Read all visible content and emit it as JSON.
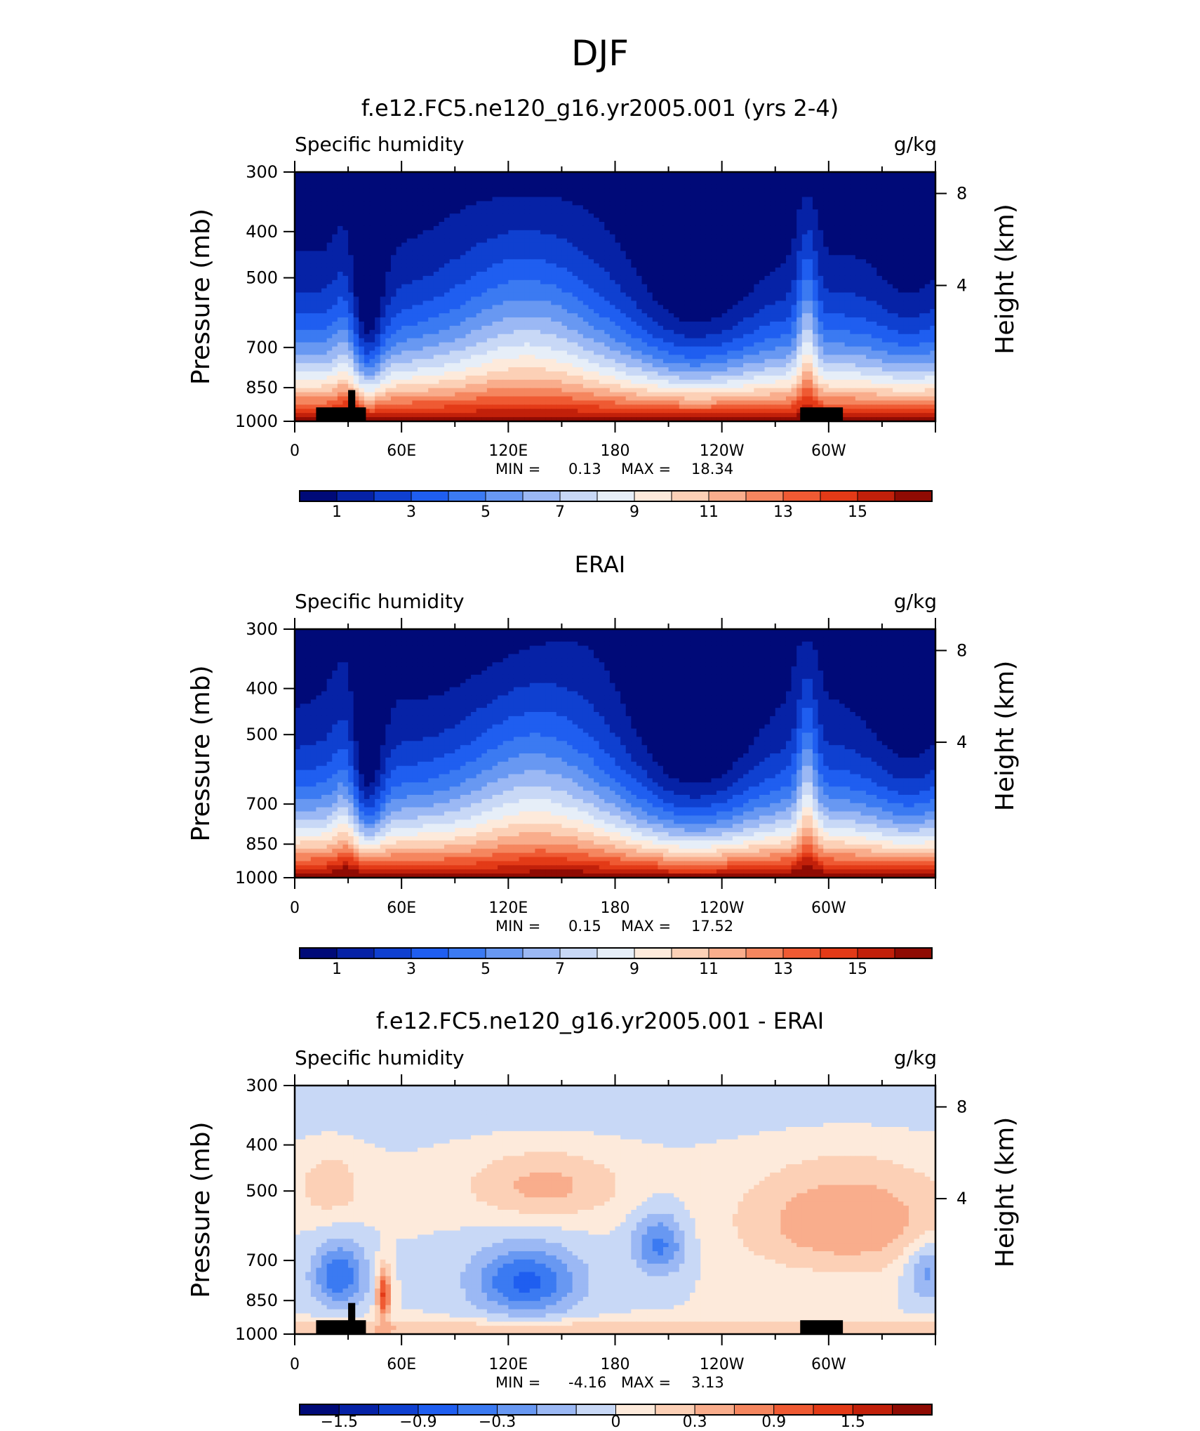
{
  "page_title": "DJF",
  "chart_data": [
    {
      "type": "heatmap",
      "title": "f.e12.FC5.ne120_g16.yr2005.001 (yrs 2-4)",
      "left_string": "Specific humidity",
      "right_string": "g/kg",
      "ylabel": "Pressure (mb)",
      "ylabel_right": "Height (km)",
      "x_ticks": [
        "0",
        "60E",
        "120E",
        "180",
        "120W",
        "60W"
      ],
      "y_ticks": [
        "300",
        "400",
        "500",
        "700",
        "850",
        "1000"
      ],
      "y_ticks_right": [
        "8",
        "4"
      ],
      "min_label": "MIN =",
      "min_value": "0.13",
      "max_label": "MAX =",
      "max_value": "18.34",
      "colorbar_labels": [
        "1",
        "3",
        "5",
        "7",
        "9",
        "11",
        "13",
        "15"
      ],
      "colorbar_colors": [
        "#000a78",
        "#0622a6",
        "#0f40d0",
        "#1f5ef0",
        "#3b7af2",
        "#6898f2",
        "#9bb8f4",
        "#c8d8f6",
        "#e6eef8",
        "#fdeadb",
        "#fcd0b6",
        "#f9ad8c",
        "#f5865f",
        "#ef5a33",
        "#e33a17",
        "#c2200a",
        "#8f0b03"
      ],
      "ylim": [
        1000,
        300
      ],
      "xlim": [
        0,
        360
      ]
    },
    {
      "type": "heatmap",
      "title": "ERAI",
      "left_string": "Specific humidity",
      "right_string": "g/kg",
      "ylabel": "Pressure (mb)",
      "ylabel_right": "Height (km)",
      "x_ticks": [
        "0",
        "60E",
        "120E",
        "180",
        "120W",
        "60W"
      ],
      "y_ticks": [
        "300",
        "400",
        "500",
        "700",
        "850",
        "1000"
      ],
      "y_ticks_right": [
        "8",
        "4"
      ],
      "min_label": "MIN =",
      "min_value": "0.15",
      "max_label": "MAX =",
      "max_value": "17.52",
      "colorbar_labels": [
        "1",
        "3",
        "5",
        "7",
        "9",
        "11",
        "13",
        "15"
      ],
      "colorbar_colors": [
        "#000a78",
        "#0622a6",
        "#0f40d0",
        "#1f5ef0",
        "#3b7af2",
        "#6898f2",
        "#9bb8f4",
        "#c8d8f6",
        "#e6eef8",
        "#fdeadb",
        "#fcd0b6",
        "#f9ad8c",
        "#f5865f",
        "#ef5a33",
        "#e33a17",
        "#c2200a",
        "#8f0b03"
      ],
      "ylim": [
        1000,
        300
      ],
      "xlim": [
        0,
        360
      ]
    },
    {
      "type": "heatmap",
      "title": "f.e12.FC5.ne120_g16.yr2005.001 - ERAI",
      "left_string": "Specific humidity",
      "right_string": "g/kg",
      "ylabel": "Pressure (mb)",
      "ylabel_right": "Height (km)",
      "x_ticks": [
        "0",
        "60E",
        "120E",
        "180",
        "120W",
        "60W"
      ],
      "y_ticks": [
        "300",
        "400",
        "500",
        "700",
        "850",
        "1000"
      ],
      "y_ticks_right": [
        "8",
        "4"
      ],
      "min_label": "MIN =",
      "min_value": "-4.16",
      "max_label": "MAX =",
      "max_value": "3.13",
      "colorbar_labels": [
        "−1.5",
        "−0.9",
        "−0.3",
        "0",
        "0.3",
        "0.9",
        "1.5"
      ],
      "colorbar_colors": [
        "#000a78",
        "#0622a6",
        "#0f40d0",
        "#1f5ef0",
        "#3b7af2",
        "#6898f2",
        "#9bb8f4",
        "#c8d8f6",
        "#fdeadb",
        "#fcd0b6",
        "#f9ad8c",
        "#f5865f",
        "#ef5a33",
        "#e33a17",
        "#c2200a",
        "#8f0b03"
      ],
      "ylim": [
        1000,
        300
      ],
      "xlim": [
        0,
        360
      ]
    }
  ]
}
